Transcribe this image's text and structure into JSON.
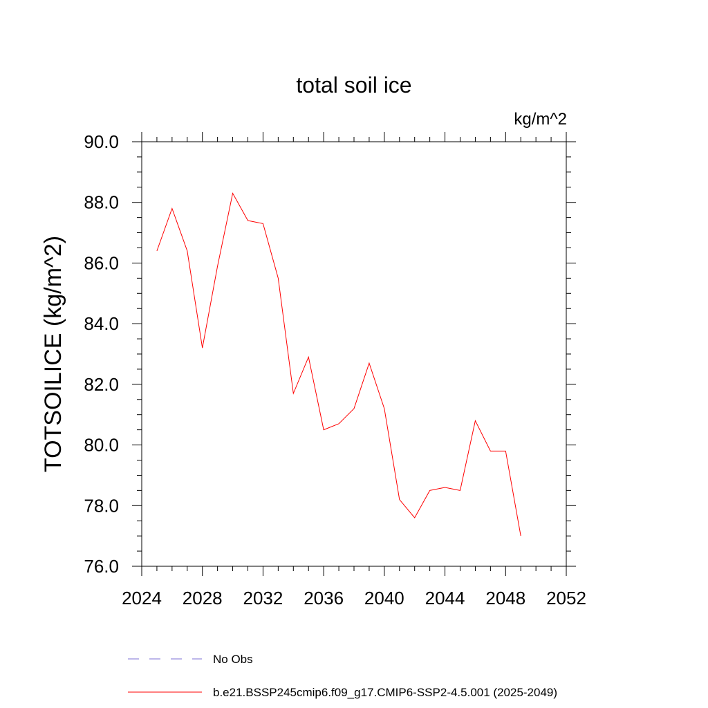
{
  "chart_data": {
    "type": "line",
    "title": "total soil ice",
    "units": "kg/m^2",
    "ylabel": "TOTSOILICE  (kg/m^2)",
    "xlabel": "",
    "xlim": [
      2024,
      2052
    ],
    "ylim": [
      76.0,
      90.0
    ],
    "x_ticks": [
      "2024",
      "2028",
      "2032",
      "2036",
      "2040",
      "2044",
      "2048",
      "2052"
    ],
    "y_ticks": [
      "76.0",
      "78.0",
      "80.0",
      "82.0",
      "84.0",
      "86.0",
      "88.0",
      "90.0"
    ],
    "grid": false,
    "legend_position": "bottom",
    "series": [
      {
        "name": "b.e21.BSSP245cmip6.f09_g17.CMIP6-SSP2-4.5.001 (2025-2049)",
        "color": "#ff0000",
        "style": "solid",
        "x": [
          2025,
          2026,
          2027,
          2028,
          2029,
          2030,
          2031,
          2032,
          2033,
          2034,
          2035,
          2036,
          2037,
          2038,
          2039,
          2040,
          2041,
          2042,
          2043,
          2044,
          2045,
          2046,
          2047,
          2048,
          2049
        ],
        "values": [
          86.4,
          87.8,
          86.4,
          83.2,
          85.9,
          88.3,
          87.4,
          87.3,
          85.5,
          81.7,
          82.9,
          80.5,
          80.7,
          81.2,
          82.7,
          81.2,
          78.2,
          77.6,
          78.5,
          78.6,
          78.5,
          80.8,
          79.8,
          79.8,
          77.0
        ]
      }
    ],
    "legend": [
      {
        "label": "No Obs",
        "color": "#7b6fd6",
        "style": "dashed"
      },
      {
        "label": "b.e21.BSSP245cmip6.f09_g17.CMIP6-SSP2-4.5.001 (2025-2049)",
        "color": "#ff0000",
        "style": "solid"
      }
    ]
  }
}
